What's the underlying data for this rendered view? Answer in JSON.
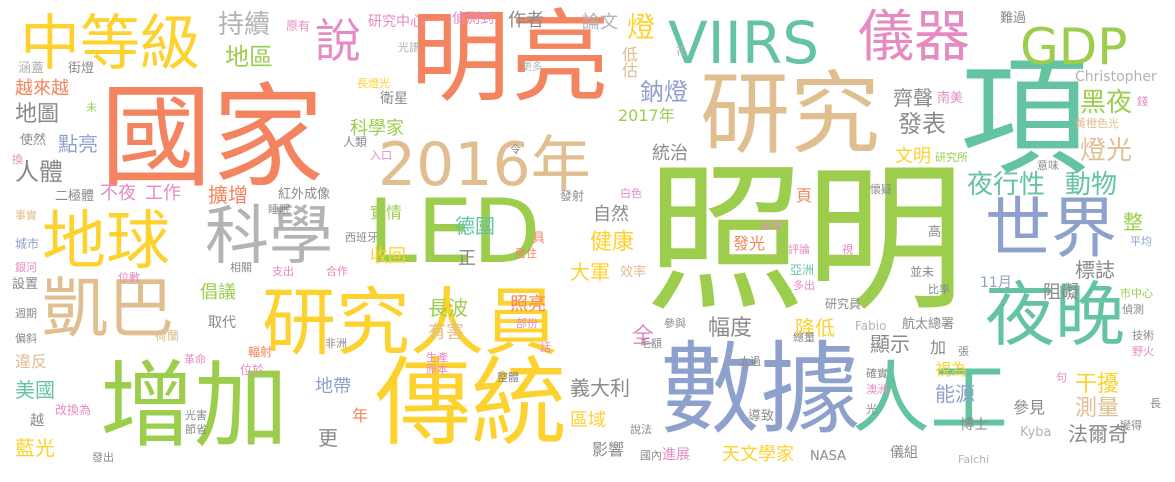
{
  "words": [
    {
      "text": "國家",
      "color": "#f4845f"
    },
    {
      "text": "照明",
      "color": "#9ccd4d"
    },
    {
      "text": "明亮",
      "color": "#f4845f"
    },
    {
      "text": "研究",
      "color": "#e0be8f"
    },
    {
      "text": "項",
      "color": "#64c3a0"
    },
    {
      "text": "數據",
      "color": "#8ea0cc"
    },
    {
      "text": "增加",
      "color": "#9ccd4d"
    },
    {
      "text": "傳統",
      "color": "#fdd22e"
    },
    {
      "text": "研究人員",
      "color": "#fdd22e"
    },
    {
      "text": "LED",
      "color": "#9ccd4d"
    },
    {
      "text": "2016年",
      "color": "#e0be8f"
    },
    {
      "text": "VIIRS",
      "color": "#64c3a0"
    },
    {
      "text": "儀器",
      "color": "#e68ac3"
    },
    {
      "text": "GDP",
      "color": "#9ccd4d"
    },
    {
      "text": "中等級",
      "color": "#fdd22e"
    },
    {
      "text": "地球",
      "color": "#fdd22e"
    },
    {
      "text": "科學",
      "color": "#b3b3b3"
    },
    {
      "text": "凱巴",
      "color": "#e0be8f"
    },
    {
      "text": "世界",
      "color": "#8ea0cc"
    },
    {
      "text": "夜晚",
      "color": "#64c3a0"
    },
    {
      "text": "人工",
      "color": "#64c3a0"
    },
    {
      "text": "說",
      "color": "#e68ac3"
    },
    {
      "text": "持續",
      "color": "#b3b3b3"
    },
    {
      "text": "地區",
      "color": "#9ccd4d"
    },
    {
      "text": "原有",
      "color": "#e68ac3"
    },
    {
      "text": "研究中心",
      "color": "#e68ac3"
    },
    {
      "text": "偵測到",
      "color": "#e68ac3"
    },
    {
      "text": "作者",
      "color": "#8a8a8a"
    },
    {
      "text": "論文",
      "color": "#b3b3b3"
    },
    {
      "text": "燈",
      "color": "#fdd22e"
    },
    {
      "text": "低估",
      "color": "#e0be8f"
    },
    {
      "text": "鈉燈",
      "color": "#8ea0cc"
    },
    {
      "text": "光譜",
      "color": "#b3b3b3"
    },
    {
      "text": "更多",
      "color": "#b3b3b3"
    },
    {
      "text": "花",
      "color": "#b3b3b3"
    },
    {
      "text": "難過",
      "color": "#8a8a8a"
    },
    {
      "text": "Christopher",
      "color": "#b3b3b3"
    },
    {
      "text": "南美",
      "color": "#e68ac3"
    },
    {
      "text": "齊聲",
      "color": "#8a8a8a"
    },
    {
      "text": "黑夜",
      "color": "#9ccd4d"
    },
    {
      "text": "燈光",
      "color": "#e0be8f"
    },
    {
      "text": "發表",
      "color": "#8a8a8a"
    },
    {
      "text": "文明",
      "color": "#fdd22e"
    },
    {
      "text": "研究所",
      "color": "#9ccd4d"
    },
    {
      "text": "黃橙色光",
      "color": "#e0be8f"
    },
    {
      "text": "錢",
      "color": "#e68ac3"
    },
    {
      "text": "意味",
      "color": "#8a8a8a"
    },
    {
      "text": "夜行性",
      "color": "#64c3a0"
    },
    {
      "text": "動物",
      "color": "#64c3a0"
    },
    {
      "text": "統治",
      "color": "#8a8a8a"
    },
    {
      "text": "2017年",
      "color": "#9ccd4d"
    },
    {
      "text": "科學家",
      "color": "#9ccd4d"
    },
    {
      "text": "涵蓋",
      "color": "#b3b3b3"
    },
    {
      "text": "街燈",
      "color": "#8a8a8a"
    },
    {
      "text": "越來越",
      "color": "#f4845f"
    },
    {
      "text": "未",
      "color": "#9ccd4d"
    },
    {
      "text": "衛星",
      "color": "#8a8a8a"
    },
    {
      "text": "長燈光",
      "color": "#fdd22e"
    },
    {
      "text": "地圖",
      "color": "#8a8a8a"
    },
    {
      "text": "點亮",
      "color": "#8ea0cc"
    },
    {
      "text": "使然",
      "color": "#8a8a8a"
    },
    {
      "text": "換",
      "color": "#e68ac3"
    },
    {
      "text": "人類",
      "color": "#8a8a8a"
    },
    {
      "text": "入口",
      "color": "#e68ac3"
    },
    {
      "text": "令",
      "color": "#8a8a8a"
    },
    {
      "text": "人體",
      "color": "#8a8a8a"
    },
    {
      "text": "不夜",
      "color": "#e68ac3"
    },
    {
      "text": "工作",
      "color": "#e68ac3"
    },
    {
      "text": "擴增",
      "color": "#f4845f"
    },
    {
      "text": "紅外成像",
      "color": "#8a8a8a"
    },
    {
      "text": "睡眠",
      "color": "#8a8a8a"
    },
    {
      "text": "二極體",
      "color": "#8a8a8a"
    },
    {
      "text": "事實",
      "color": "#e0be8f"
    },
    {
      "text": "城市",
      "color": "#8ea0cc"
    },
    {
      "text": "銀河",
      "color": "#e68ac3"
    },
    {
      "text": "設置",
      "color": "#8a8a8a"
    },
    {
      "text": "週期",
      "color": "#8a8a8a"
    },
    {
      "text": "偏斜",
      "color": "#8a8a8a"
    },
    {
      "text": "實情",
      "color": "#9ccd4d"
    },
    {
      "text": "西班牙",
      "color": "#8a8a8a"
    },
    {
      "text": "收回",
      "color": "#fdd22e"
    },
    {
      "text": "德國",
      "color": "#64c3a0"
    },
    {
      "text": "正",
      "color": "#8a8a8a"
    },
    {
      "text": "具",
      "color": "#f4845f"
    },
    {
      "text": "居住",
      "color": "#f4845f"
    },
    {
      "text": "白色",
      "color": "#e68ac3"
    },
    {
      "text": "發射",
      "color": "#8a8a8a"
    },
    {
      "text": "自然",
      "color": "#8a8a8a"
    },
    {
      "text": "健康",
      "color": "#fdd22e"
    },
    {
      "text": "大軍",
      "color": "#fdd22e"
    },
    {
      "text": "效率",
      "color": "#e0be8f"
    },
    {
      "text": "發光",
      "color": "#f4845f"
    },
    {
      "text": "全球",
      "color": "#e68ac3"
    },
    {
      "text": "頁",
      "color": "#f4845f"
    },
    {
      "text": "懷疑",
      "color": "#8a8a8a"
    },
    {
      "text": "評論",
      "color": "#e68ac3"
    },
    {
      "text": "視",
      "color": "#e68ac3"
    },
    {
      "text": "高",
      "color": "#8a8a8a"
    },
    {
      "text": "亞洲",
      "color": "#64c3a0"
    },
    {
      "text": "多出",
      "color": "#e68ac3"
    },
    {
      "text": "並未",
      "color": "#8a8a8a"
    },
    {
      "text": "比率",
      "color": "#8a8a8a"
    },
    {
      "text": "整",
      "color": "#9ccd4d"
    },
    {
      "text": "平均",
      "color": "#8ea0cc"
    },
    {
      "text": "標誌",
      "color": "#8a8a8a"
    },
    {
      "text": "阻礙",
      "color": "#8a8a8a"
    },
    {
      "text": "11月",
      "color": "#8ea0cc"
    },
    {
      "text": "市中心",
      "color": "#9ccd4d"
    },
    {
      "text": "偵測",
      "color": "#8a8a8a"
    },
    {
      "text": "倡議",
      "color": "#9ccd4d"
    },
    {
      "text": "長波",
      "color": "#9ccd4d"
    },
    {
      "text": "照亮",
      "color": "#f4845f"
    },
    {
      "text": "研究員",
      "color": "#8a8a8a"
    },
    {
      "text": "幅度",
      "color": "#8a8a8a"
    },
    {
      "text": "降低",
      "color": "#fdd22e"
    },
    {
      "text": "取代",
      "color": "#8a8a8a"
    },
    {
      "text": "荷蘭",
      "color": "#e0be8f"
    },
    {
      "text": "有害",
      "color": "#e0be8f"
    },
    {
      "text": "部份",
      "color": "#e68ac3"
    },
    {
      "text": "全",
      "color": "#e68ac3"
    },
    {
      "text": "參與",
      "color": "#8a8a8a"
    },
    {
      "text": "Fabio",
      "color": "#b3b3b3"
    },
    {
      "text": "航太總署",
      "color": "#8a8a8a"
    },
    {
      "text": "總量",
      "color": "#8a8a8a"
    },
    {
      "text": "顯示",
      "color": "#8a8a8a"
    },
    {
      "text": "加",
      "color": "#8a8a8a"
    },
    {
      "text": "技術",
      "color": "#8a8a8a"
    },
    {
      "text": "野火",
      "color": "#e68ac3"
    },
    {
      "text": "違反",
      "color": "#e0be8f"
    },
    {
      "text": "革命",
      "color": "#e68ac3"
    },
    {
      "text": "非洲",
      "color": "#8a8a8a"
    },
    {
      "text": "生產",
      "color": "#e68ac3"
    },
    {
      "text": "原本",
      "color": "#e68ac3"
    },
    {
      "text": "話",
      "color": "#e68ac3"
    },
    {
      "text": "毛額",
      "color": "#8a8a8a"
    },
    {
      "text": "太過",
      "color": "#8a8a8a"
    },
    {
      "text": "張",
      "color": "#8a8a8a"
    },
    {
      "text": "輻射",
      "color": "#f4845f"
    },
    {
      "text": "位於",
      "color": "#e68ac3"
    },
    {
      "text": "視為",
      "color": "#fdd22e"
    },
    {
      "text": "確實",
      "color": "#8a8a8a"
    },
    {
      "text": "澳洲",
      "color": "#e68ac3"
    },
    {
      "text": "句",
      "color": "#e68ac3"
    },
    {
      "text": "美國",
      "color": "#64c3a0"
    },
    {
      "text": "地帶",
      "color": "#8ea0cc"
    },
    {
      "text": "義大利",
      "color": "#8a8a8a"
    },
    {
      "text": "整體",
      "color": "#8a8a8a"
    },
    {
      "text": "干擾",
      "color": "#fdd22e"
    },
    {
      "text": "能源",
      "color": "#8ea0cc"
    },
    {
      "text": "測量",
      "color": "#e0be8f"
    },
    {
      "text": "參見",
      "color": "#8a8a8a"
    },
    {
      "text": "博士",
      "color": "#8a8a8a"
    },
    {
      "text": "法爾奇",
      "color": "#8a8a8a"
    },
    {
      "text": "越",
      "color": "#8a8a8a"
    },
    {
      "text": "改換為",
      "color": "#e68ac3"
    },
    {
      "text": "年",
      "color": "#f4845f"
    },
    {
      "text": "光害",
      "color": "#8a8a8a"
    },
    {
      "text": "節省",
      "color": "#8a8a8a"
    },
    {
      "text": "更",
      "color": "#8a8a8a"
    },
    {
      "text": "區域",
      "color": "#fdd22e"
    },
    {
      "text": "說法",
      "color": "#8a8a8a"
    },
    {
      "text": "導致",
      "color": "#8a8a8a"
    },
    {
      "text": "光",
      "color": "#8a8a8a"
    },
    {
      "text": "Kyba",
      "color": "#b3b3b3"
    },
    {
      "text": "長",
      "color": "#8a8a8a"
    },
    {
      "text": "變得",
      "color": "#8a8a8a"
    },
    {
      "text": "藍光",
      "color": "#fdd22e"
    },
    {
      "text": "發出",
      "color": "#8a8a8a"
    },
    {
      "text": "影響",
      "color": "#8a8a8a"
    },
    {
      "text": "國內",
      "color": "#8a8a8a"
    },
    {
      "text": "進展",
      "color": "#e68ac3"
    },
    {
      "text": "天文學家",
      "color": "#fdd22e"
    },
    {
      "text": "NASA",
      "color": "#8a8a8a"
    },
    {
      "text": "儀組",
      "color": "#8a8a8a"
    },
    {
      "text": "Falchi",
      "color": "#b3b3b3"
    },
    {
      "text": "支出",
      "color": "#e68ac3"
    },
    {
      "text": "合作",
      "color": "#e68ac3"
    },
    {
      "text": "相關",
      "color": "#8a8a8a"
    },
    {
      "text": "位數",
      "color": "#e68ac3"
    }
  ]
}
